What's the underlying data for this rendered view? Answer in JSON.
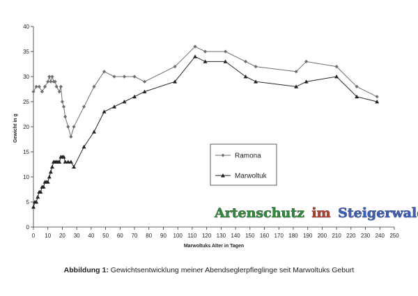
{
  "chart_data": {
    "type": "line",
    "xlabel": "Marwoltuks Alter in Tagen",
    "ylabel": "Gewicht in g",
    "xlim": [
      0,
      250
    ],
    "ylim": [
      0,
      40
    ],
    "x_ticks": [
      0,
      10,
      20,
      30,
      40,
      50,
      60,
      70,
      80,
      90,
      100,
      110,
      120,
      130,
      140,
      150,
      160,
      170,
      180,
      190,
      200,
      210,
      220,
      230,
      240,
      250
    ],
    "y_ticks": [
      0,
      5,
      10,
      15,
      20,
      25,
      30,
      35,
      40
    ],
    "grid": false,
    "legend_position": "center-right",
    "series": [
      {
        "name": "Ramona",
        "marker": "diamond",
        "color": "#6e6e6e",
        "x": [
          0,
          2,
          4,
          6,
          8,
          10,
          11,
          12,
          13,
          14,
          15,
          16,
          18,
          19,
          20,
          21,
          22,
          24,
          26,
          28,
          35,
          42,
          49,
          56,
          63,
          70,
          77,
          98,
          112,
          119,
          133,
          147,
          154,
          182,
          189,
          210,
          224,
          238
        ],
        "y": [
          27,
          28,
          28,
          27,
          28,
          29,
          30,
          29,
          30,
          29,
          29,
          28,
          27,
          28,
          25,
          24,
          22,
          20,
          18,
          20,
          24,
          28,
          31,
          30,
          30,
          30,
          29,
          32,
          36,
          35,
          35,
          33,
          32,
          31,
          33,
          32,
          28,
          26
        ]
      },
      {
        "name": "Marwoltuk",
        "marker": "triangle",
        "color": "#222222",
        "x": [
          0,
          1,
          2,
          3,
          4,
          5,
          6,
          7,
          8,
          9,
          10,
          11,
          12,
          13,
          14,
          15,
          16,
          17,
          18,
          19,
          20,
          21,
          22,
          24,
          26,
          28,
          35,
          42,
          49,
          56,
          63,
          70,
          77,
          98,
          112,
          119,
          133,
          147,
          154,
          182,
          189,
          210,
          224,
          238
        ],
        "y": [
          4,
          5,
          5,
          6,
          7,
          7,
          8,
          8,
          9,
          9,
          9,
          10,
          11,
          12,
          13,
          13,
          13,
          13,
          13,
          14,
          14,
          14,
          13,
          13,
          13,
          12,
          16,
          19,
          23,
          24,
          25,
          26,
          27,
          29,
          34,
          33,
          33,
          30,
          29,
          28,
          29,
          30,
          26,
          25
        ]
      }
    ]
  },
  "watermark": {
    "word1": "Artenschutz",
    "word2": "im",
    "word3": "Steigerwald",
    "colors": {
      "word1": "#2e8b3a",
      "word2": "#c03a2b",
      "word3": "#3a5fc0"
    }
  },
  "caption": {
    "label": "Abbildung 1:",
    "text": " Gewichtsentwicklung meiner Abendseglerpfleglinge seit Marwoltuks Geburt"
  }
}
